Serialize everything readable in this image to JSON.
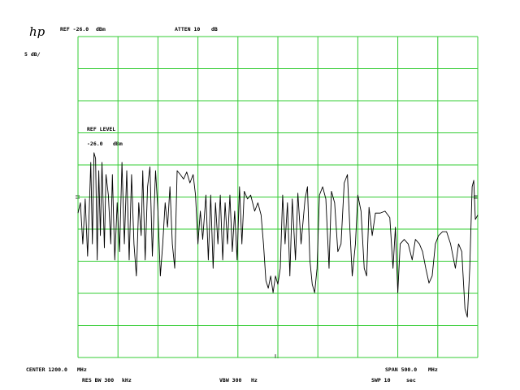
{
  "chart_data": {
    "type": "line",
    "logo": "hp",
    "annotations": {
      "ref": "REF -26.0",
      "ref_unit": "dBm",
      "atten": "ATTEN 10",
      "atten_unit": "dB",
      "scale": "5 dB/",
      "ref_level": "REF LEVEL",
      "ref_level_value": "-26.0",
      "ref_level_unit": "dBm",
      "center": "CENTER 1200.0",
      "center_unit": "MHz",
      "span": "SPAN 500.0",
      "span_unit": "MHz",
      "res_bw": "RES BW 300",
      "res_bw_unit": "kHz",
      "vbw": "VBW 300",
      "vbw_unit": "Hz",
      "swp": "SWP 10",
      "swp_unit": "sec"
    },
    "xlim": [
      950,
      1450
    ],
    "xticks": [
      950,
      1000,
      1050,
      1100,
      1150,
      1200,
      1250,
      1300,
      1350,
      1400,
      1450
    ],
    "ylim": [
      -76,
      -26
    ],
    "yticks": [
      -76,
      -71,
      -66,
      -61,
      -56,
      -51,
      -46,
      -41,
      -36,
      -31,
      -26
    ],
    "grid": true,
    "grid_color": "#33cc33",
    "color": "#000000",
    "x": [
      950,
      953,
      956,
      959,
      962,
      964,
      966,
      968,
      970,
      972,
      974,
      976,
      978,
      980,
      983,
      985,
      988,
      991,
      993,
      996,
      999,
      1002,
      1005,
      1008,
      1011,
      1014,
      1017,
      1020,
      1023,
      1026,
      1029,
      1031,
      1034,
      1037,
      1040,
      1043,
      1047,
      1050,
      1053,
      1056,
      1059,
      1062,
      1065,
      1068,
      1071,
      1074,
      1078,
      1082,
      1086,
      1090,
      1094,
      1097,
      1100,
      1103,
      1106,
      1110,
      1113,
      1116,
      1119,
      1122,
      1125,
      1128,
      1131,
      1134,
      1137,
      1140,
      1143,
      1146,
      1149,
      1152,
      1155,
      1158,
      1162,
      1166,
      1171,
      1175,
      1179,
      1182,
      1185,
      1188,
      1191,
      1194,
      1197,
      1200,
      1203,
      1206,
      1209,
      1212,
      1215,
      1218,
      1222,
      1225,
      1229,
      1234,
      1237,
      1240,
      1243,
      1246,
      1249,
      1252,
      1256,
      1260,
      1264,
      1267,
      1271,
      1275,
      1279,
      1283,
      1287,
      1290,
      1293,
      1297,
      1300,
      1304,
      1308,
      1311,
      1314,
      1318,
      1322,
      1328,
      1334,
      1340,
      1344,
      1347,
      1350,
      1353,
      1358,
      1363,
      1368,
      1372,
      1377,
      1381,
      1385,
      1389,
      1393,
      1397,
      1401,
      1406,
      1411,
      1416,
      1422,
      1426,
      1430,
      1434,
      1437,
      1440,
      1443,
      1445,
      1447,
      1450
    ],
    "values": [
      -53.5,
      -51.9,
      -58.3,
      -51.3,
      -60.2,
      -53.2,
      -45.6,
      -58.3,
      -44.1,
      -45.0,
      -60.8,
      -46.9,
      -57.0,
      -45.6,
      -58.9,
      -47.5,
      -50.7,
      -58.3,
      -47.5,
      -60.8,
      -51.9,
      -59.5,
      -45.6,
      -58.3,
      -46.9,
      -60.8,
      -47.5,
      -58.3,
      -63.3,
      -51.9,
      -57.0,
      -46.9,
      -60.8,
      -49.4,
      -46.3,
      -60.2,
      -46.9,
      -53.2,
      -63.3,
      -58.3,
      -51.9,
      -55.7,
      -49.4,
      -58.3,
      -62.1,
      -46.9,
      -47.5,
      -48.2,
      -47.1,
      -48.8,
      -47.5,
      -50.7,
      -58.3,
      -53.2,
      -57.6,
      -50.7,
      -60.8,
      -50.7,
      -62.1,
      -51.9,
      -58.3,
      -50.7,
      -60.8,
      -51.9,
      -58.3,
      -50.7,
      -59.5,
      -53.2,
      -60.8,
      -49.4,
      -58.3,
      -50.1,
      -51.3,
      -50.7,
      -53.2,
      -51.9,
      -53.8,
      -58.3,
      -64.0,
      -65.2,
      -63.3,
      -65.9,
      -63.3,
      -64.6,
      -62.1,
      -50.7,
      -58.3,
      -51.9,
      -63.3,
      -51.3,
      -60.8,
      -50.4,
      -58.3,
      -51.3,
      -49.4,
      -60.8,
      -64.6,
      -65.9,
      -62.1,
      -50.7,
      -49.4,
      -51.3,
      -62.1,
      -50.1,
      -51.9,
      -59.5,
      -58.3,
      -48.8,
      -47.5,
      -55.7,
      -63.3,
      -58.3,
      -50.7,
      -53.2,
      -62.1,
      -63.3,
      -52.6,
      -57.0,
      -53.5,
      -53.5,
      -53.2,
      -54.2,
      -62.1,
      -55.7,
      -65.9,
      -58.3,
      -57.6,
      -58.3,
      -60.8,
      -57.6,
      -58.3,
      -59.5,
      -62.1,
      -64.4,
      -63.3,
      -58.3,
      -57.0,
      -56.4,
      -56.4,
      -58.3,
      -62.1,
      -58.3,
      -59.5,
      -68.4,
      -69.7,
      -62.1,
      -49.4,
      -48.4,
      -54.5,
      -53.8
    ]
  }
}
